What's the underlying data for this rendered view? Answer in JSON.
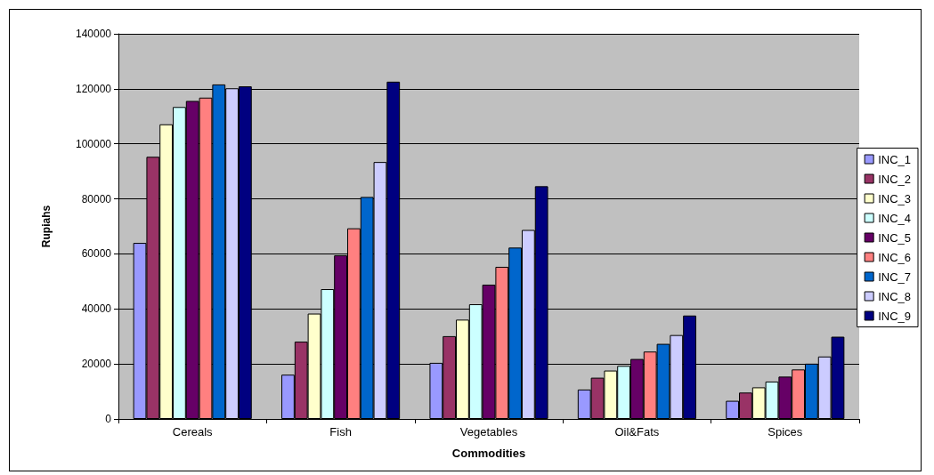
{
  "chart_data": {
    "type": "bar",
    "xlabel": "Commodities",
    "ylabel": "Rupiahs",
    "categories": [
      "Cereals",
      "Fish",
      "Vegetables",
      "Oil&Fats",
      "Spices"
    ],
    "series": [
      {
        "name": "INC_1",
        "color": "#9999ff",
        "values": [
          64000,
          16100,
          20400,
          10700,
          6600
        ]
      },
      {
        "name": "INC_2",
        "color": "#993366",
        "values": [
          95300,
          28100,
          30100,
          15000,
          9600
        ]
      },
      {
        "name": "INC_3",
        "color": "#ffffcc",
        "values": [
          107100,
          38300,
          36100,
          17600,
          11500
        ]
      },
      {
        "name": "INC_4",
        "color": "#ccffff",
        "values": [
          113400,
          47200,
          41700,
          19300,
          13600
        ]
      },
      {
        "name": "INC_5",
        "color": "#660066",
        "values": [
          115600,
          59500,
          48800,
          21800,
          15400
        ]
      },
      {
        "name": "INC_6",
        "color": "#ff8080",
        "values": [
          116800,
          69300,
          55300,
          24500,
          18000
        ]
      },
      {
        "name": "INC_7",
        "color": "#0066cc",
        "values": [
          121600,
          80700,
          62300,
          27300,
          20100
        ]
      },
      {
        "name": "INC_8",
        "color": "#ccccff",
        "values": [
          120200,
          93400,
          68700,
          30500,
          22700
        ]
      },
      {
        "name": "INC_9",
        "color": "#000080",
        "values": [
          120900,
          122600,
          84600,
          37600,
          29900
        ]
      }
    ],
    "ylim": [
      0,
      140000
    ],
    "yticks": [
      0,
      20000,
      40000,
      60000,
      80000,
      100000,
      120000,
      140000
    ],
    "grid": "y",
    "legend": "right"
  }
}
